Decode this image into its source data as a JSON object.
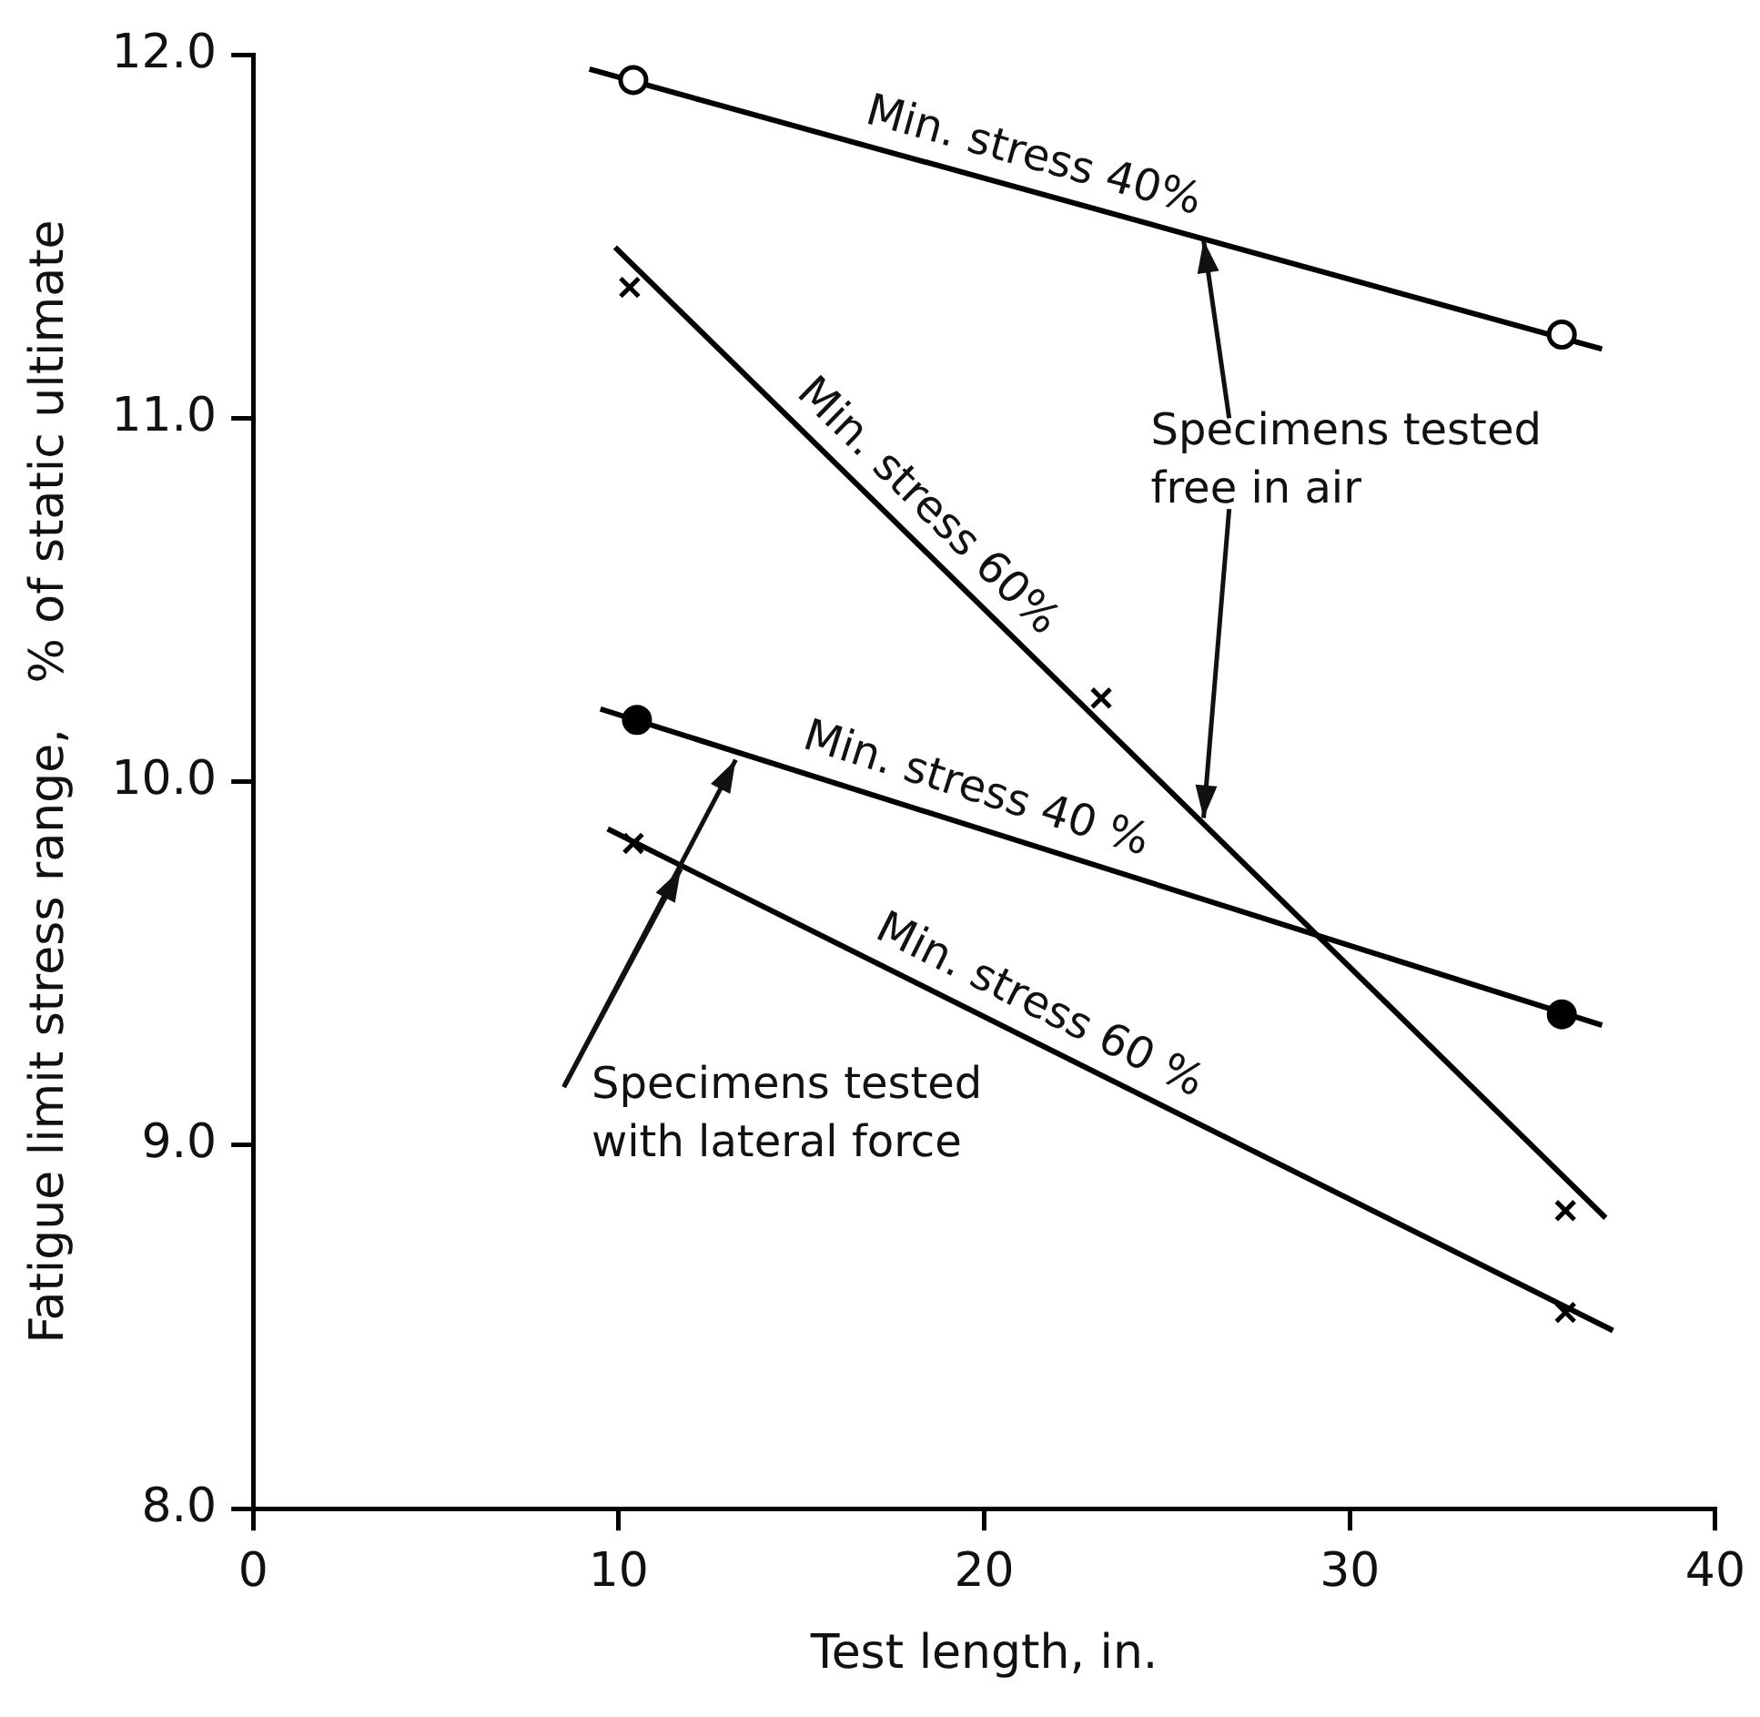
{
  "chart_data": {
    "type": "line",
    "xlabel": "Test length, in.",
    "ylabel": "Fatigue limit stress range,   % of static ultimate",
    "xlim": [
      0,
      40
    ],
    "xticks": [
      0,
      10,
      20,
      30,
      40
    ],
    "ylim": [
      8,
      12
    ],
    "yticks": [
      {
        "value": 8,
        "label": "8.0"
      },
      {
        "value": 9,
        "label": "9.0"
      },
      {
        "value": 10,
        "label": "10.0"
      },
      {
        "value": 11,
        "label": "11.0"
      },
      {
        "value": 12,
        "label": "12.0"
      }
    ],
    "grid": false,
    "legend": false,
    "series": [
      {
        "type": "scatter",
        "marker": "circle",
        "color": "#ffffff",
        "x": [
          10.4,
          35.8
        ],
        "values": [
          11.93,
          11.23
        ]
      },
      {
        "marker": "none",
        "color": "#000000",
        "x": [
          9.2,
          36.9
        ],
        "values": [
          11.96,
          11.19
        ]
      },
      {
        "type": "scatter",
        "marker": "cross",
        "color": "#000000",
        "x": [
          10.3,
          23.2,
          35.9
        ],
        "values": [
          11.36,
          10.23,
          8.82
        ]
      },
      {
        "marker": "none",
        "color": "#000000",
        "x": [
          9.9,
          37.0
        ],
        "values": [
          11.47,
          8.8
        ]
      },
      {
        "type": "scatter",
        "marker": "circle",
        "color": "#000000",
        "x": [
          10.5,
          35.8
        ],
        "values": [
          10.17,
          9.36
        ]
      },
      {
        "marker": "none",
        "color": "#000000",
        "x": [
          9.5,
          36.9
        ],
        "values": [
          10.2,
          9.33
        ]
      },
      {
        "type": "scatter",
        "marker": "cross",
        "color": "#000000",
        "x": [
          10.4,
          35.9
        ],
        "values": [
          9.83,
          8.54
        ]
      },
      {
        "marker": "none",
        "color": "#000000",
        "x": [
          9.7,
          37.2
        ],
        "values": [
          9.87,
          8.49
        ]
      }
    ],
    "annotations": [
      {
        "text": "Min. stress 40%",
        "x": 21.1,
        "y": 11.63
      },
      {
        "text": "Min. stress 60%",
        "x": 17.8,
        "y": 10.69
      },
      {
        "text": "Min. stress 40 %",
        "x": 19.5,
        "y": 9.89
      },
      {
        "text": "Min. stress 60 %",
        "x": 21.1,
        "y": 9.3
      },
      {
        "text": "Specimens tested\nfree in air",
        "x": 26.0,
        "y": 11.49
      },
      {
        "text": "Specimens tested\nwith lateral force",
        "x": 13.2,
        "y": 10.06
      }
    ]
  }
}
